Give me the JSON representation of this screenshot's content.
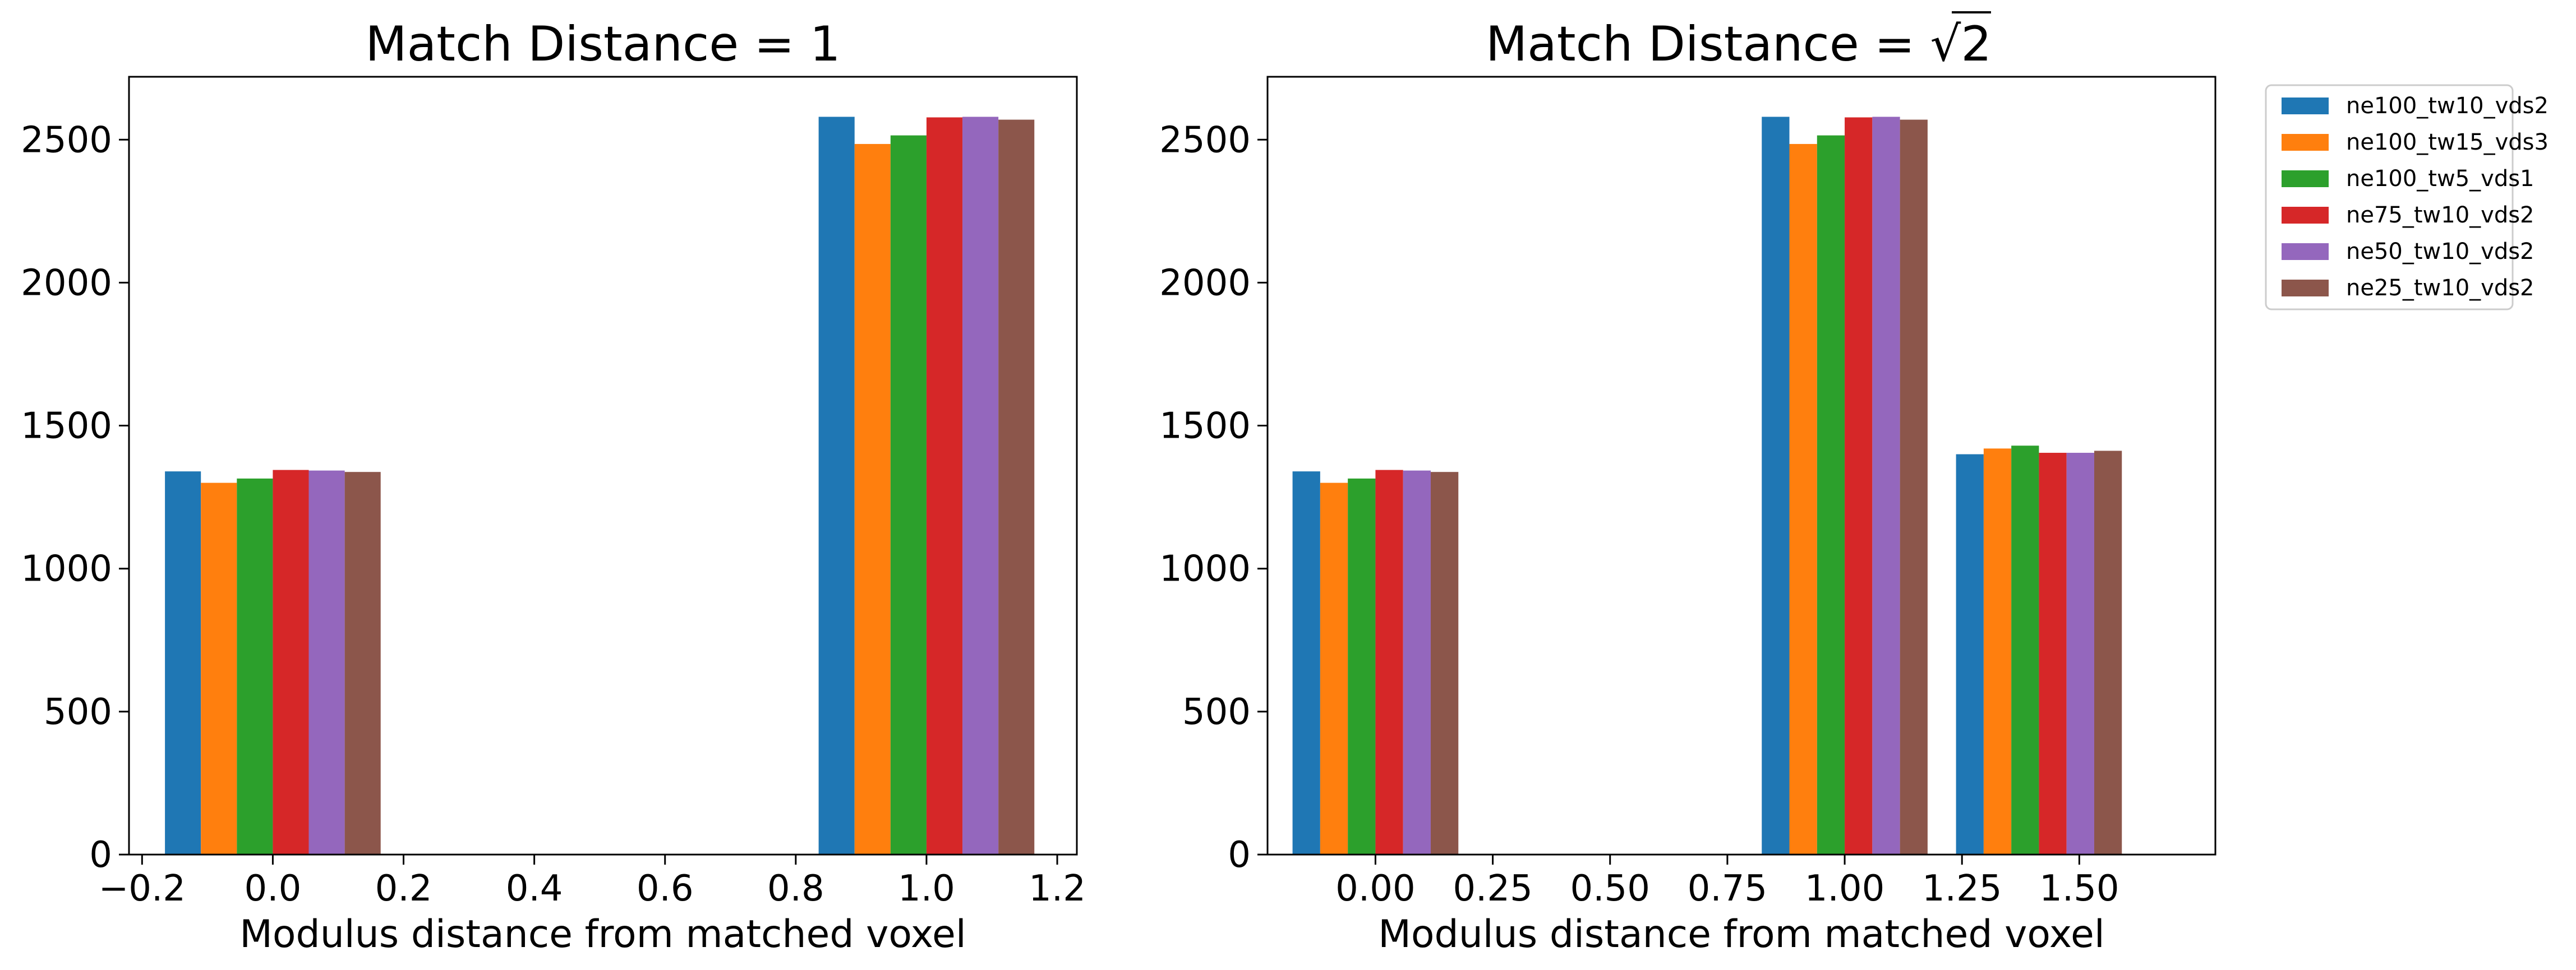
{
  "chart_data": [
    {
      "type": "bar",
      "title": "Match Distance = 1",
      "xlabel": "Modulus distance from matched voxel",
      "ylabel": "",
      "xlim": [
        -0.22,
        1.23
      ],
      "ylim": [
        0,
        2720
      ],
      "xticks": [
        -0.2,
        0.0,
        0.2,
        0.4,
        0.6,
        0.8,
        1.0,
        1.2
      ],
      "xticklabels": [
        "−0.2",
        "0.0",
        "0.2",
        "0.4",
        "0.6",
        "0.8",
        "1.0",
        "1.2"
      ],
      "yticks": [
        0,
        500,
        1000,
        1500,
        2000,
        2500
      ],
      "yticklabels": [
        "0",
        "500",
        "1000",
        "1500",
        "2000",
        "2500"
      ],
      "bar_width": 0.055,
      "categories": [
        0.0,
        1.0
      ],
      "series": [
        {
          "name": "ne100_tw10_vds2",
          "values": [
            1340,
            2580
          ]
        },
        {
          "name": "ne100_tw15_vds3",
          "values": [
            1300,
            2485
          ]
        },
        {
          "name": "ne100_tw5_vds1",
          "values": [
            1315,
            2515
          ]
        },
        {
          "name": "ne75_tw10_vds2",
          "values": [
            1345,
            2578
          ]
        },
        {
          "name": "ne50_tw10_vds2",
          "values": [
            1343,
            2580
          ]
        },
        {
          "name": "ne25_tw10_vds2",
          "values": [
            1338,
            2570
          ]
        }
      ],
      "grid": false,
      "legend": false
    },
    {
      "type": "bar",
      "title_prefix": "Match Distance = ",
      "title_radicand": "2",
      "xlabel": "Modulus distance from matched voxel",
      "ylabel": "",
      "xlim": [
        -0.23,
        1.79
      ],
      "ylim": [
        0,
        2720
      ],
      "xticks": [
        0.0,
        0.25,
        0.5,
        0.75,
        1.0,
        1.25,
        1.5
      ],
      "xticklabels": [
        "0.00",
        "0.25",
        "0.50",
        "0.75",
        "1.00",
        "1.25",
        "1.50"
      ],
      "yticks": [
        0,
        500,
        1000,
        1500,
        2000,
        2500
      ],
      "yticklabels": [
        "0",
        "500",
        "1000",
        "1500",
        "2000",
        "2500"
      ],
      "bar_width": 0.0589,
      "categories": [
        0.0,
        1.0,
        1.414
      ],
      "series": [
        {
          "name": "ne100_tw10_vds2",
          "values": [
            1340,
            2580,
            1400
          ]
        },
        {
          "name": "ne100_tw15_vds3",
          "values": [
            1300,
            2485,
            1420
          ]
        },
        {
          "name": "ne100_tw5_vds1",
          "values": [
            1315,
            2515,
            1430
          ]
        },
        {
          "name": "ne75_tw10_vds2",
          "values": [
            1345,
            2578,
            1405
          ]
        },
        {
          "name": "ne50_tw10_vds2",
          "values": [
            1343,
            2580,
            1405
          ]
        },
        {
          "name": "ne25_tw10_vds2",
          "values": [
            1338,
            2570,
            1412
          ]
        }
      ],
      "grid": false,
      "legend": "outside-upper-right"
    }
  ],
  "colors": [
    "#1f77b4",
    "#ff7f0e",
    "#2ca02c",
    "#d62728",
    "#9467bd",
    "#8c564b"
  ]
}
